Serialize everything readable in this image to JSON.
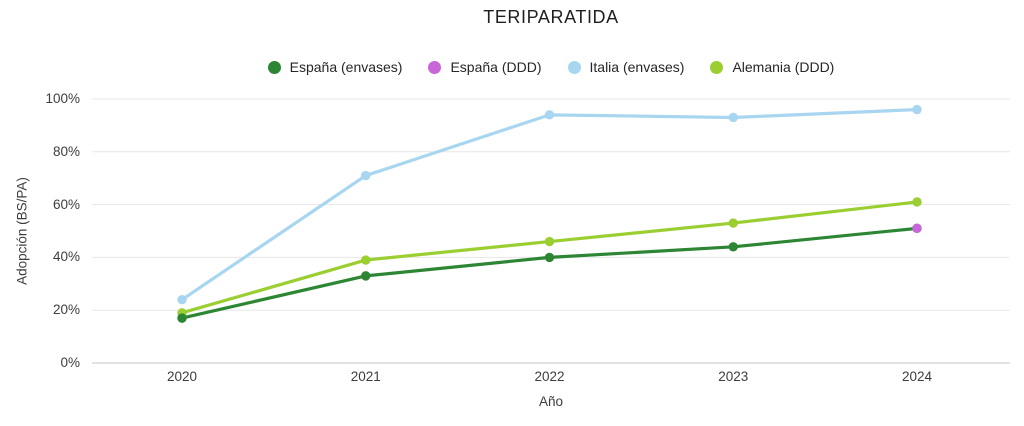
{
  "chart_data": {
    "type": "line",
    "title": "TERIPARATIDA",
    "xlabel": "Año",
    "ylabel": "Adopción (BS/PA)",
    "x": [
      2020,
      2021,
      2022,
      2023,
      2024
    ],
    "ylim": [
      0,
      100
    ],
    "grid": true,
    "legend_position": "top",
    "background_color": "#ffffff",
    "gridline_color": "#e7e7e7",
    "axisline_color": "#c6c6c6",
    "y_ticks": [
      {
        "value": 0,
        "label": "0%"
      },
      {
        "value": 20,
        "label": "20%"
      },
      {
        "value": 40,
        "label": "40%"
      },
      {
        "value": 60,
        "label": "60%"
      },
      {
        "value": 80,
        "label": "80%"
      },
      {
        "value": 100,
        "label": "100%"
      }
    ],
    "series": [
      {
        "name": "España (envases)",
        "color": "#2d8633",
        "style": "line-markers",
        "values": [
          17,
          33,
          40,
          44,
          51
        ]
      },
      {
        "name": "España (DDD)",
        "color": "#c865d8",
        "style": "markers-only",
        "values": [
          null,
          null,
          null,
          null,
          51
        ]
      },
      {
        "name": "Italia (envases)",
        "color": "#a8d5f0",
        "style": "line-markers",
        "values": [
          24,
          71,
          94,
          93,
          96
        ]
      },
      {
        "name": "Alemania (DDD)",
        "color": "#9bce31",
        "style": "line-markers",
        "values": [
          19,
          39,
          46,
          53,
          61
        ]
      }
    ]
  }
}
